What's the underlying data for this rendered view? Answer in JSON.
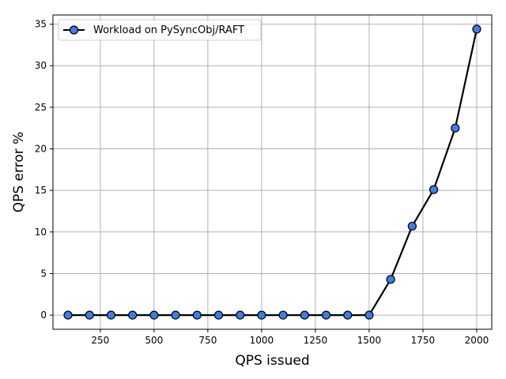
{
  "chart_data": {
    "type": "line",
    "title": "",
    "xlabel": "QPS issued",
    "ylabel": "QPS error %",
    "xlim": [
      30,
      2070
    ],
    "ylim": [
      -1.7,
      36.1
    ],
    "xticks": [
      250,
      500,
      750,
      1000,
      1250,
      1500,
      1750,
      2000
    ],
    "yticks": [
      0,
      5,
      10,
      15,
      20,
      25,
      30,
      35
    ],
    "grid": true,
    "legend_position": "top-left",
    "series": [
      {
        "name": "Workload on PySyncObj/RAFT",
        "color": "#000000",
        "marker_color": "#3b7de9",
        "x": [
          100,
          200,
          300,
          400,
          500,
          600,
          700,
          800,
          900,
          1000,
          1100,
          1200,
          1300,
          1400,
          1500,
          1600,
          1700,
          1800,
          1900,
          2000
        ],
        "y": [
          0,
          0,
          0,
          0,
          0,
          0,
          0,
          0,
          0,
          0,
          0,
          0,
          0,
          0,
          0,
          4.3,
          10.7,
          15.1,
          22.5,
          34.4
        ]
      }
    ]
  }
}
